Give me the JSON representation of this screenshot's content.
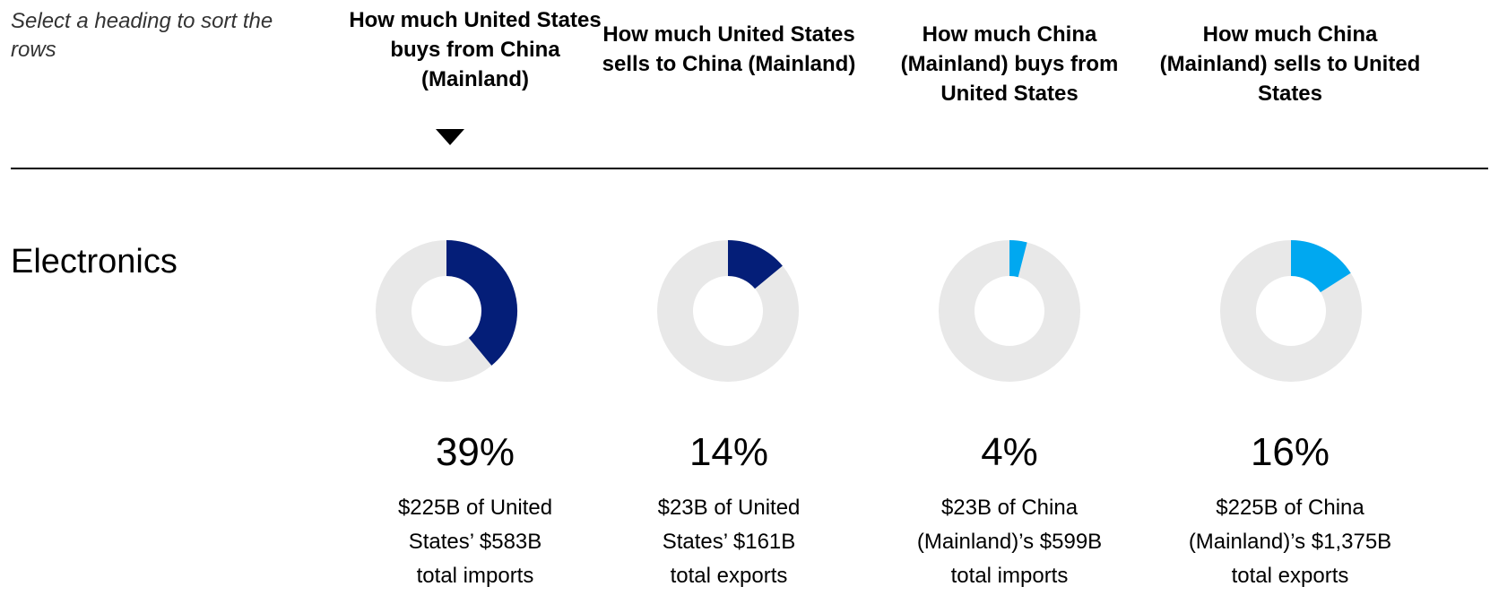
{
  "hint": "Select a heading to sort the rows",
  "colors": {
    "track": "#e8e8e8",
    "dark_blue": "#041e78",
    "light_blue": "#00a8f0"
  },
  "chart_data": {
    "type": "pie",
    "row_label": "Electronics",
    "columns": [
      {
        "heading": "How much United States buys from China (Mainland)",
        "sorted": true,
        "value": 39,
        "value_label": "39%",
        "color": "#041e78",
        "desc_line1": "$225B of United",
        "desc_line2": "States’ $583B",
        "desc_line3": "total imports"
      },
      {
        "heading": "How much United States sells to China (Mainland)",
        "sorted": false,
        "value": 14,
        "value_label": "14%",
        "color": "#041e78",
        "desc_line1": "$23B of United",
        "desc_line2": "States’ $161B",
        "desc_line3": "total exports"
      },
      {
        "heading": "How much China (Mainland) buys from United States",
        "sorted": false,
        "value": 4,
        "value_label": "4%",
        "color": "#00a8f0",
        "desc_line1": "$23B of China",
        "desc_line2": "(Mainland)’s $599B",
        "desc_line3": "total imports"
      },
      {
        "heading": "How much China (Mainland) sells to United States",
        "sorted": false,
        "value": 16,
        "value_label": "16%",
        "color": "#00a8f0",
        "desc_line1": "$225B of China",
        "desc_line2": "(Mainland)’s $1,375B",
        "desc_line3": "total exports"
      }
    ]
  }
}
